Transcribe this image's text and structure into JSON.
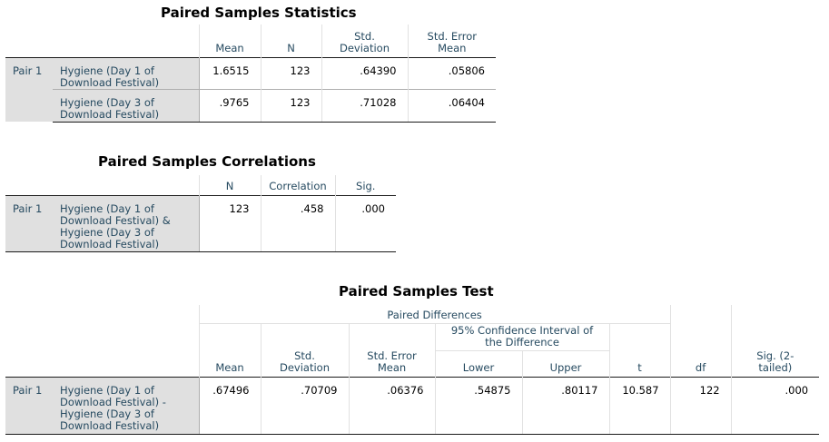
{
  "stats": {
    "title": "Paired Samples Statistics",
    "headers": [
      "Mean",
      "N",
      "Std.\nDeviation",
      "Std. Error\nMean"
    ],
    "pair_label": "Pair 1",
    "rows": [
      {
        "label": "Hygiene (Day 1 of\nDownload Festival)",
        "mean": "1.6515",
        "n": "123",
        "sd": ".64390",
        "se": ".05806"
      },
      {
        "label": "Hygiene (Day 3 of\nDownload Festival)",
        "mean": ".9765",
        "n": "123",
        "sd": ".71028",
        "se": ".06404"
      }
    ]
  },
  "corr": {
    "title": "Paired Samples Correlations",
    "headers": [
      "N",
      "Correlation",
      "Sig."
    ],
    "pair_label": "Pair 1",
    "row": {
      "label": "Hygiene (Day 1 of\nDownload Festival) &\nHygiene (Day 3 of\nDownload Festival)",
      "n": "123",
      "correlation": ".458",
      "sig": ".000"
    }
  },
  "test": {
    "title": "Paired Samples Test",
    "group_header": "Paired Differences",
    "ci_header": "95% Confidence Interval of\nthe Difference",
    "headers": [
      "Mean",
      "Std.\nDeviation",
      "Std. Error\nMean",
      "Lower",
      "Upper",
      "t",
      "df",
      "Sig. (2-\ntailed)"
    ],
    "pair_label": "Pair 1",
    "row": {
      "label": "Hygiene (Day 1 of\nDownload Festival) -\nHygiene (Day 3 of\nDownload Festival)",
      "mean": ".67496",
      "sd": ".70709",
      "se": ".06376",
      "lower": ".54875",
      "upper": ".80117",
      "t": "10.587",
      "df": "122",
      "sig": ".000"
    }
  }
}
